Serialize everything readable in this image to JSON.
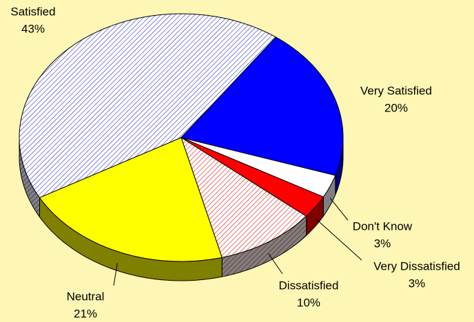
{
  "chart_data": {
    "type": "pie",
    "categories": [
      "Satisfied",
      "Very Satisfied",
      "Don't Know",
      "Very Dissatisfied",
      "Dissatisfied",
      "Neutral"
    ],
    "values": [
      43,
      20,
      3,
      3,
      10,
      21
    ],
    "value_labels": [
      "43%",
      "20%",
      "3%",
      "3%",
      "10%",
      "21%"
    ],
    "colors": [
      "#3a3acc",
      "#0000ff",
      "#ffffff",
      "#ff0000",
      "#dd2222",
      "#ffff00"
    ],
    "hatch": [
      true,
      false,
      false,
      false,
      true,
      false
    ]
  }
}
